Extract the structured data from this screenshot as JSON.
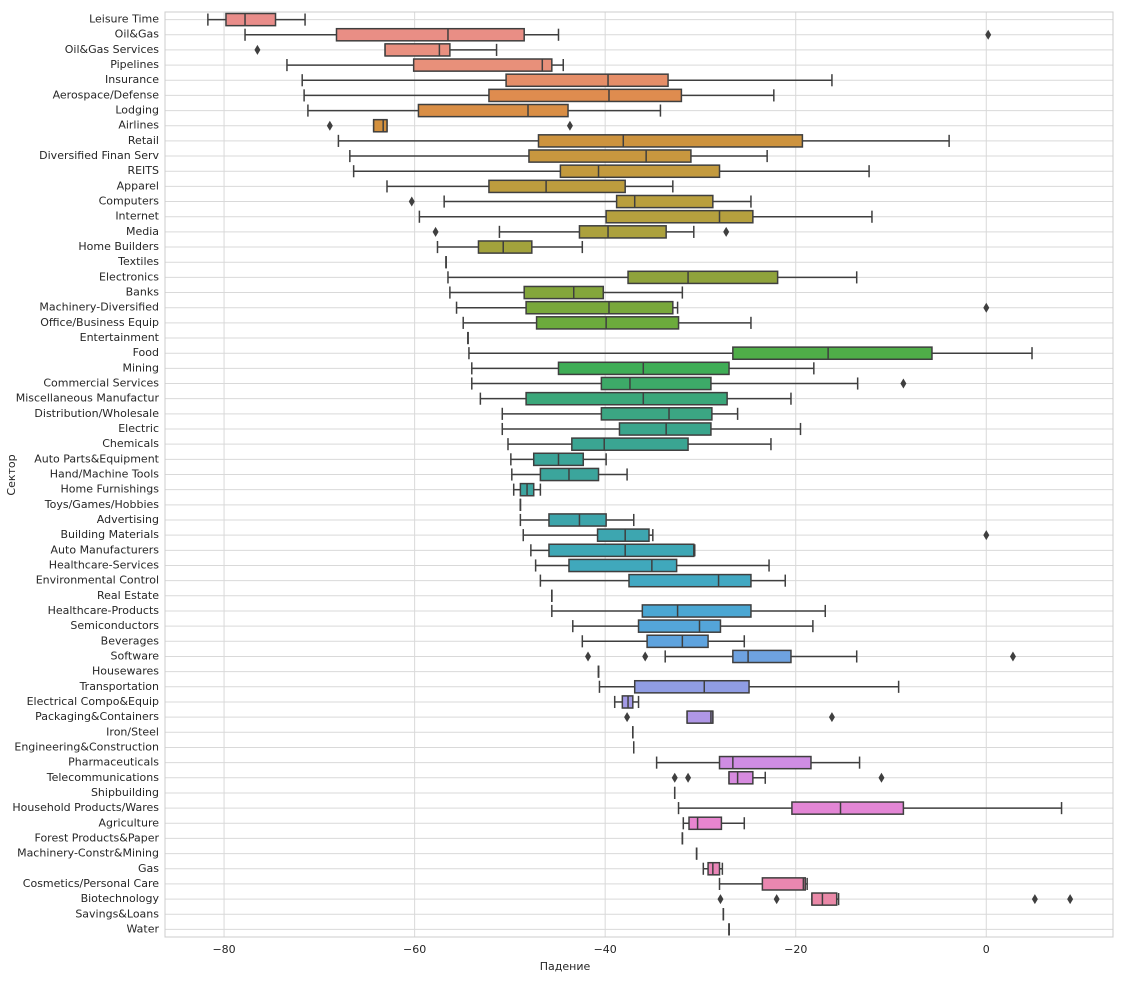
{
  "chart_data": {
    "type": "boxplot",
    "orientation": "horizontal",
    "xlabel": "Падение",
    "ylabel": "Сектор",
    "xlim": [
      -86.2,
      13.3
    ],
    "xticks": [
      {
        "value": -80,
        "label": "−80"
      },
      {
        "value": -60,
        "label": "−60"
      },
      {
        "value": -40,
        "label": "−40"
      },
      {
        "value": -20,
        "label": "−20"
      },
      0
    ],
    "grid": true,
    "categories": [
      "Leisure Time",
      "Oil&Gas",
      "Oil&Gas Services",
      "Pipelines",
      "Insurance",
      "Aerospace/Defense",
      "Lodging",
      "Airlines",
      "Retail",
      "Diversified Finan Serv",
      "REITS",
      "Apparel",
      "Computers",
      "Internet",
      "Media",
      "Home Builders",
      "Textiles",
      "Electronics",
      "Banks",
      "Machinery-Diversified",
      "Office/Business Equip",
      "Entertainment",
      "Food",
      "Mining",
      "Commercial Services",
      "Miscellaneous Manufactur",
      "Distribution/Wholesale",
      "Electric",
      "Chemicals",
      "Auto Parts&Equipment",
      "Hand/Machine Tools",
      "Home Furnishings",
      "Toys/Games/Hobbies",
      "Advertising",
      "Building Materials",
      "Auto Manufacturers",
      "Healthcare-Services",
      "Environmental Control",
      "Real Estate",
      "Healthcare-Products",
      "Semiconductors",
      "Beverages",
      "Software",
      "Housewares",
      "Transportation",
      "Electrical Compo&Equip",
      "Packaging&Containers",
      "Iron/Steel",
      "Engineering&Construction",
      "Pharmaceuticals",
      "Telecommunications",
      "Shipbuilding",
      "Household Products/Wares",
      "Agriculture",
      "Forest Products&Paper",
      "Machinery-Constr&Mining",
      "Gas",
      "Cosmetics/Personal Care",
      "Biotechnology",
      "Savings&Loans",
      "Water"
    ],
    "stats": [
      [
        -81.7,
        -79.8,
        -77.8,
        -74.6,
        -71.5
      ],
      [
        -77.8,
        -68.2,
        -56.5,
        -48.5,
        -44.9
      ],
      [
        -63.1,
        -63.1,
        -57.4,
        -56.3,
        -51.4
      ],
      [
        -73.4,
        -60.1,
        -46.6,
        -45.6,
        -44.4
      ],
      [
        -71.8,
        -50.4,
        -39.7,
        -33.4,
        -16.2
      ],
      [
        -71.6,
        -52.2,
        -39.6,
        -32.0,
        -22.3
      ],
      [
        -71.2,
        -59.6,
        -48.1,
        -43.9,
        -34.2
      ],
      [
        -64.3,
        -64.3,
        -63.3,
        -62.9,
        -62.9
      ],
      [
        -68.0,
        -47.0,
        -38.1,
        -19.3,
        -3.9
      ],
      [
        -66.8,
        -48.0,
        -35.7,
        -31.0,
        -23.0
      ],
      [
        -66.4,
        -44.7,
        -40.7,
        -28.0,
        -12.3
      ],
      [
        -62.9,
        -52.2,
        -46.2,
        -37.9,
        -32.9
      ],
      [
        -56.9,
        -38.8,
        -36.9,
        -28.7,
        -24.7
      ],
      [
        -59.5,
        -39.9,
        -28.0,
        -24.5,
        -12.0
      ],
      [
        -51.1,
        -42.7,
        -39.7,
        -33.6,
        -30.7
      ],
      [
        -57.6,
        -53.3,
        -50.7,
        -47.7,
        -42.4
      ],
      [
        -56.7,
        -56.7,
        -56.7,
        -56.7,
        -56.7
      ],
      [
        -56.5,
        -37.6,
        -31.3,
        -21.9,
        -13.6
      ],
      [
        -56.3,
        -48.5,
        -43.3,
        -40.2,
        -31.9
      ],
      [
        -55.6,
        -48.3,
        -39.6,
        -32.9,
        -32.4
      ],
      [
        -54.9,
        -47.2,
        -39.9,
        -32.3,
        -24.7
      ],
      [
        -54.4,
        -54.4,
        -54.4,
        -54.4,
        -54.4
      ],
      [
        -54.3,
        -26.6,
        -16.6,
        -5.7,
        4.8
      ],
      [
        -54.0,
        -44.9,
        -36.0,
        -27.0,
        -18.1
      ],
      [
        -54.0,
        -40.4,
        -37.4,
        -28.9,
        -13.5
      ],
      [
        -53.1,
        -48.3,
        -36.0,
        -27.2,
        -20.5
      ],
      [
        -50.8,
        -40.4,
        -33.3,
        -28.8,
        -26.1
      ],
      [
        -50.8,
        -38.5,
        -33.6,
        -28.9,
        -19.5
      ],
      [
        -50.2,
        -43.5,
        -40.1,
        -31.3,
        -22.6
      ],
      [
        -49.9,
        -47.5,
        -44.9,
        -42.3,
        -39.9
      ],
      [
        -49.8,
        -46.8,
        -43.8,
        -40.7,
        -37.7
      ],
      [
        -49.6,
        -48.9,
        -48.2,
        -47.5,
        -46.8
      ],
      [
        -48.9,
        -48.9,
        -48.9,
        -48.9,
        -48.9
      ],
      [
        -48.9,
        -45.9,
        -42.7,
        -39.9,
        -37.0
      ],
      [
        -48.6,
        -40.8,
        -37.9,
        -35.4,
        -35.0
      ],
      [
        -47.8,
        -45.9,
        -37.9,
        -30.7,
        -30.6
      ],
      [
        -47.3,
        -43.8,
        -35.1,
        -32.5,
        -22.8
      ],
      [
        -46.8,
        -37.5,
        -28.1,
        -24.7,
        -21.1
      ],
      [
        -45.6,
        -45.6,
        -45.6,
        -45.6,
        -45.6
      ],
      [
        -45.6,
        -36.1,
        -32.4,
        -24.7,
        -16.9
      ],
      [
        -43.4,
        -36.5,
        -30.1,
        -27.9,
        -18.2
      ],
      [
        -42.4,
        -35.6,
        -31.9,
        -29.2,
        -25.4
      ],
      [
        -33.7,
        -26.6,
        -25.0,
        -20.5,
        -13.6
      ],
      [
        -40.7,
        -40.7,
        -40.7,
        -40.7,
        -40.7
      ],
      [
        -40.6,
        -36.9,
        -29.6,
        -24.9,
        -9.2
      ],
      [
        -39.0,
        -38.2,
        -37.6,
        -37.1,
        -36.5
      ],
      [
        -31.4,
        -31.4,
        -28.9,
        -28.7,
        -28.7
      ],
      [
        -37.1,
        -37.1,
        -37.1,
        -37.1,
        -37.1
      ],
      [
        -37.0,
        -37.0,
        -37.0,
        -37.0,
        -37.0
      ],
      [
        -34.6,
        -28.0,
        -26.6,
        -18.4,
        -13.3
      ],
      [
        -27.0,
        -27.0,
        -26.1,
        -24.5,
        -23.2
      ],
      [
        -32.7,
        -32.7,
        -32.7,
        -32.7,
        -32.7
      ],
      [
        -32.3,
        -20.4,
        -15.3,
        -8.7,
        7.9
      ],
      [
        -31.8,
        -31.2,
        -30.3,
        -27.8,
        -25.4
      ],
      [
        -31.9,
        -31.9,
        -31.9,
        -31.9,
        -31.9
      ],
      [
        -30.4,
        -30.4,
        -30.4,
        -30.4,
        -30.4
      ],
      [
        -29.7,
        -29.2,
        -28.7,
        -28.0,
        -27.7
      ],
      [
        -28.0,
        -23.5,
        -19.2,
        -19.0,
        -18.8
      ],
      [
        -18.3,
        -18.3,
        -17.2,
        -15.7,
        -15.5
      ],
      [
        -27.6,
        -27.6,
        -27.6,
        -27.6,
        -27.6
      ],
      [
        -27.0,
        -27.0,
        -27.0,
        -27.0,
        -27.0
      ]
    ],
    "fliers": [
      [],
      [
        0.2
      ],
      [
        -76.5
      ],
      [],
      [],
      [],
      [],
      [
        -68.9,
        -43.7
      ],
      [],
      [],
      [],
      [],
      [
        -60.3
      ],
      [],
      [
        -57.8,
        -27.3
      ],
      [],
      [],
      [],
      [],
      [
        0
      ],
      [],
      [],
      [],
      [],
      [
        -8.7
      ],
      [],
      [],
      [],
      [],
      [],
      [],
      [],
      [],
      [],
      [
        0
      ],
      [],
      [],
      [],
      [],
      [],
      [],
      [],
      [
        -41.8,
        -35.8,
        2.8
      ],
      [],
      [],
      [],
      [
        -37.7,
        -16.2
      ],
      [],
      [],
      [],
      [
        -32.7,
        -31.3,
        -11.0
      ],
      [],
      [],
      [],
      [],
      [],
      [],
      [],
      [
        -27.9,
        -22.0,
        5.1,
        8.8
      ],
      [],
      []
    ],
    "colors": [
      "#e98d8a",
      "#e98e85",
      "#e99080",
      "#e8907a",
      "#e58e68",
      "#df8c4f",
      "#d98e45",
      "#d3903d",
      "#cd933e",
      "#c8973f",
      "#c39a3e",
      "#bd9d3e",
      "#b99f3e",
      "#b5a03e",
      "#aca13d",
      "#a2a23c",
      "#99a33c",
      "#8fa33c",
      "#84a63b",
      "#79a83b",
      "#6cab3c",
      "#5fae3d",
      "#4fae48",
      "#3fad56",
      "#3daa68",
      "#3ba77a",
      "#3ba683",
      "#3aa58c",
      "#3aa592",
      "#3ba498",
      "#3ba59c",
      "#3ca5a0",
      "#3ca5a6",
      "#3da5ab",
      "#3da6b0",
      "#3ea7b5",
      "#40a8bc",
      "#42a8c2",
      "#46a8cb",
      "#4ba7d3",
      "#54a5d9",
      "#5ea3de",
      "#6ea2e0",
      "#7ea0e2",
      "#909de4",
      "#a39ae6",
      "#af97e6",
      "#bb93e6",
      "#c590e5",
      "#cf8de4",
      "#d78bdf",
      "#de88db",
      "#e386d5",
      "#e885cf",
      "#e985c8",
      "#ea85c0",
      "#ea86b8",
      "#ea87b0",
      "#ea89a8",
      "#ea8aa0",
      "#ea8b9a"
    ]
  }
}
